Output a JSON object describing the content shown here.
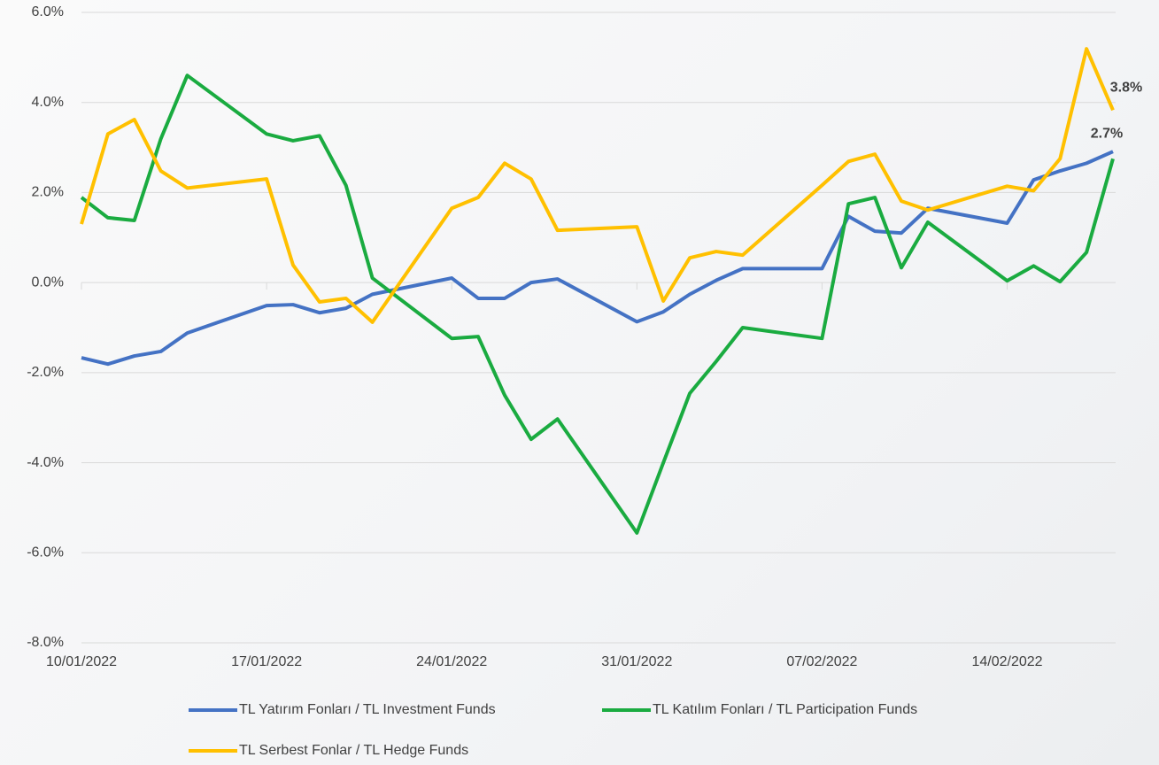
{
  "chart_data": {
    "type": "line",
    "x": [
      "10/01/2022",
      "11/01/2022",
      "12/01/2022",
      "13/01/2022",
      "14/01/2022",
      "17/01/2022",
      "18/01/2022",
      "19/01/2022",
      "20/01/2022",
      "21/01/2022",
      "24/01/2022",
      "25/01/2022",
      "26/01/2022",
      "27/01/2022",
      "28/01/2022",
      "31/01/2022",
      "01/02/2022",
      "02/02/2022",
      "03/02/2022",
      "04/02/2022",
      "07/02/2022",
      "08/02/2022",
      "09/02/2022",
      "10/02/2022",
      "11/02/2022",
      "14/02/2022",
      "15/02/2022",
      "16/02/2022",
      "17/02/2022",
      "18/02/2022"
    ],
    "series": [
      {
        "name": "TL Yatırım Fonları / TL Investment Funds",
        "color": "#4472c4",
        "values": [
          -1.67,
          -1.81,
          -1.63,
          -1.53,
          -1.12,
          -0.51,
          -0.49,
          -0.67,
          -0.57,
          -0.26,
          0.1,
          -0.35,
          -0.35,
          0.0,
          0.08,
          -0.87,
          -0.65,
          -0.26,
          0.05,
          0.31,
          0.31,
          1.47,
          1.14,
          1.1,
          1.65,
          1.32,
          2.28,
          2.48,
          2.65,
          2.91
        ]
      },
      {
        "name": "TL Katılım Fonları / TL Participation Funds",
        "color": "#1aab40",
        "values": [
          1.89,
          1.44,
          1.38,
          3.19,
          4.6,
          3.3,
          3.15,
          3.26,
          2.16,
          0.1,
          -1.24,
          -1.2,
          -2.5,
          -3.48,
          -3.03,
          -5.56,
          -4.0,
          -2.46,
          -1.75,
          -1.0,
          -1.24,
          1.75,
          1.89,
          0.33,
          1.34,
          0.04,
          0.37,
          0.02,
          0.67,
          2.75
        ],
        "value_labels": [
          null,
          null,
          null,
          null,
          null,
          null,
          null,
          null,
          null,
          null,
          null,
          null,
          null,
          null,
          null,
          null,
          null,
          null,
          null,
          null,
          null,
          null,
          null,
          null,
          null,
          null,
          null,
          null,
          null,
          "2.7%"
        ]
      },
      {
        "name": "TL Serbest Fonlar / TL Hedge Funds",
        "color": "#ffc000",
        "values": [
          1.3,
          3.3,
          3.62,
          2.48,
          2.1,
          2.3,
          0.39,
          -0.43,
          -0.35,
          -0.88,
          1.65,
          1.89,
          2.65,
          2.3,
          1.16,
          1.24,
          -0.41,
          0.55,
          0.69,
          0.61,
          2.16,
          2.69,
          2.85,
          1.81,
          1.61,
          2.14,
          2.04,
          2.75,
          5.19,
          3.83
        ],
        "value_labels": [
          null,
          null,
          null,
          null,
          null,
          null,
          null,
          null,
          null,
          null,
          null,
          null,
          null,
          null,
          null,
          null,
          null,
          null,
          null,
          null,
          null,
          null,
          null,
          null,
          null,
          null,
          null,
          null,
          null,
          "3.8%"
        ]
      }
    ],
    "xlim": [
      "10/01/2022",
      "18/02/2022"
    ],
    "xticks": [
      "10/01/2022",
      "17/01/2022",
      "24/01/2022",
      "31/01/2022",
      "07/02/2022",
      "14/02/2022"
    ],
    "ylim": [
      -8,
      6
    ],
    "yticks": [
      {
        "value": -8,
        "label": "-8.0%"
      },
      {
        "value": -6,
        "label": "-6.0%"
      },
      {
        "value": -4,
        "label": "-4.0%"
      },
      {
        "value": -2,
        "label": "-2.0%"
      },
      {
        "value": 0,
        "label": "0.0%"
      },
      {
        "value": 2,
        "label": "2.0%"
      },
      {
        "value": 4,
        "label": "4.0%"
      },
      {
        "value": 6,
        "label": "6.0%"
      }
    ],
    "grid": true,
    "legend": "bottom"
  }
}
